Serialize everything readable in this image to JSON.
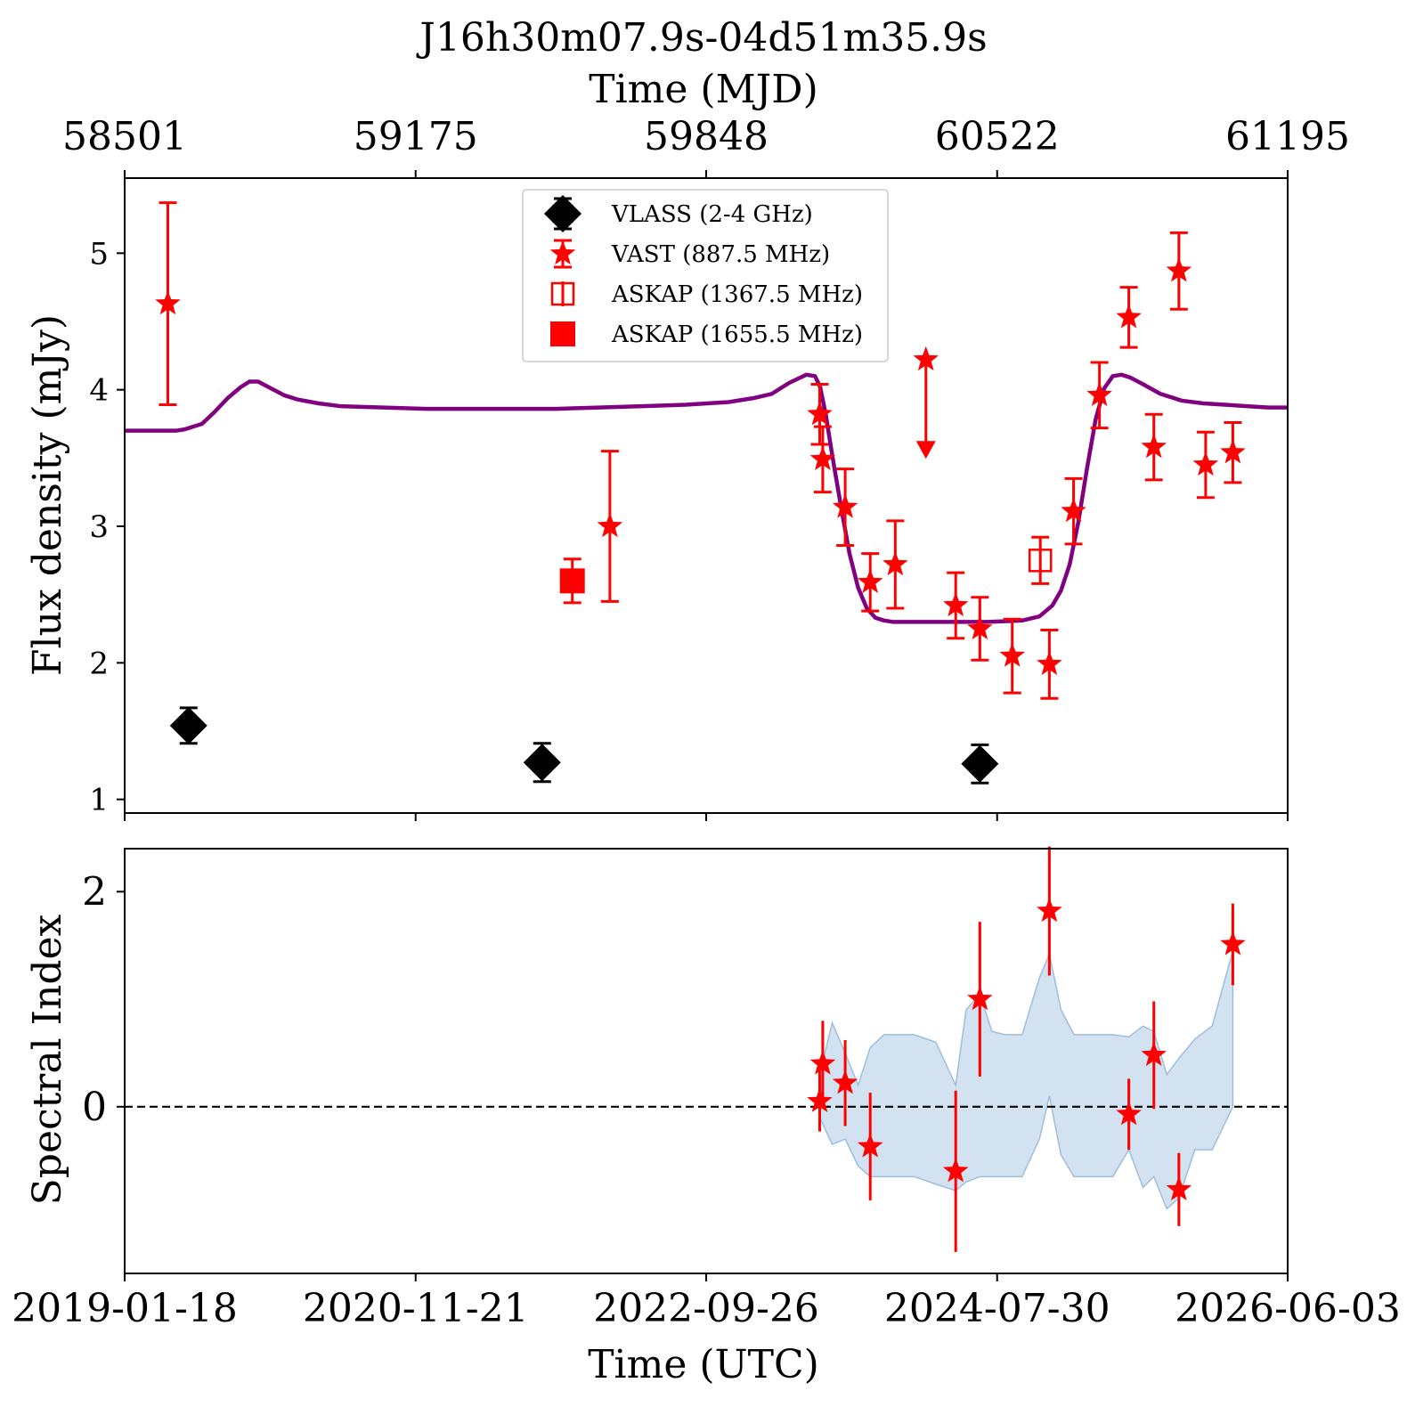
{
  "chart_data": [
    {
      "type": "scatter",
      "panel": "flux",
      "title": "J16h30m07.9s-04d51m35.9s",
      "top_axis": {
        "label": "Time (MJD)",
        "ticks": [
          "58501",
          "59175",
          "59848",
          "60522",
          "61195"
        ],
        "tick_values": [
          58501,
          59175,
          59848,
          60522,
          61195
        ]
      },
      "ylabel": "Flux density (mJy)",
      "yticks": [
        1,
        2,
        3,
        4,
        5
      ],
      "xlim_mjd": [
        58501,
        61195
      ],
      "ylim": [
        0.9,
        5.55
      ],
      "grid": false,
      "legend_position": "top-center",
      "legend": [
        {
          "label": "VLASS (2-4 GHz)",
          "marker": "diamond",
          "color": "#000000"
        },
        {
          "label": "VAST (887.5 MHz)",
          "marker": "star",
          "color": "#ff0000"
        },
        {
          "label": "ASKAP (1367.5 MHz)",
          "marker": "open-square",
          "color": "#ff0000"
        },
        {
          "label": "ASKAP (1655.5 MHz)",
          "marker": "filled-square",
          "color": "#ff0000"
        }
      ],
      "series": [
        {
          "name": "VLASS (2-4 GHz)",
          "color": "#000000",
          "marker": "diamond",
          "points": [
            {
              "mjd": 58649,
              "y": 1.54,
              "yerr": 0.13
            },
            {
              "mjd": 59468,
              "y": 1.27,
              "yerr": 0.14
            },
            {
              "mjd": 60482,
              "y": 1.26,
              "yerr": 0.14
            }
          ]
        },
        {
          "name": "VAST (887.5 MHz)",
          "color": "#ff0000",
          "marker": "star",
          "points": [
            {
              "mjd": 58601,
              "y": 4.63,
              "yerr": 0.74
            },
            {
              "mjd": 59625,
              "y": 3.0,
              "yerr": 0.55
            },
            {
              "mjd": 60111,
              "y": 3.82,
              "yerr": 0.22
            },
            {
              "mjd": 60118,
              "y": 3.49,
              "yerr": 0.24
            },
            {
              "mjd": 60170,
              "y": 3.14,
              "yerr": 0.28
            },
            {
              "mjd": 60228,
              "y": 2.59,
              "yerr": 0.21
            },
            {
              "mjd": 60286,
              "y": 2.72,
              "yerr": 0.32
            },
            {
              "mjd": 60426,
              "y": 2.42,
              "yerr": 0.24
            },
            {
              "mjd": 60482,
              "y": 2.25,
              "yerr": 0.23
            },
            {
              "mjd": 60557,
              "y": 2.05,
              "yerr": 0.27
            },
            {
              "mjd": 60643,
              "y": 1.99,
              "yerr": 0.25
            },
            {
              "mjd": 60699,
              "y": 3.11,
              "yerr": 0.24
            },
            {
              "mjd": 60759,
              "y": 3.96,
              "yerr": 0.24
            },
            {
              "mjd": 60827,
              "y": 4.53,
              "yerr": 0.22
            },
            {
              "mjd": 60885,
              "y": 3.58,
              "yerr": 0.24
            },
            {
              "mjd": 60943,
              "y": 4.87,
              "yerr": 0.28
            },
            {
              "mjd": 61005,
              "y": 3.45,
              "yerr": 0.24
            },
            {
              "mjd": 61068,
              "y": 3.54,
              "yerr": 0.22
            }
          ],
          "upper_limits": [
            {
              "mjd": 60357,
              "y": 4.22
            }
          ]
        },
        {
          "name": "ASKAP (1367.5 MHz)",
          "color": "#ff0000",
          "marker": "open-square",
          "points": [
            {
              "mjd": 60622,
              "y": 2.75,
              "yerr": 0.17
            }
          ]
        },
        {
          "name": "ASKAP (1655.5 MHz)",
          "color": "#ff0000",
          "marker": "filled-square",
          "points": [
            {
              "mjd": 59538,
              "y": 2.6,
              "yerr": 0.16
            }
          ]
        },
        {
          "name": "",
          "kind": "model-curve",
          "color": "#800080",
          "x_mjd": [
            58501,
            58540,
            58580,
            58600,
            58620,
            58640,
            58680,
            58710,
            58740,
            58770,
            58790,
            58810,
            58840,
            58870,
            58900,
            58950,
            59000,
            59100,
            59200,
            59300,
            59400,
            59500,
            59600,
            59700,
            59800,
            59900,
            59960,
            60000,
            60040,
            60060,
            60080,
            60100,
            60112,
            60125,
            60140,
            60160,
            60180,
            60200,
            60220,
            60240,
            60260,
            60280,
            60300,
            60330,
            60400,
            60500,
            60580,
            60620,
            60650,
            60670,
            60690,
            60710,
            60730,
            60750,
            60770,
            60790,
            60810,
            60830,
            60860,
            60900,
            60950,
            61000,
            61050,
            61100,
            61150,
            61195
          ],
          "y": [
            3.7,
            3.7,
            3.7,
            3.7,
            3.7,
            3.71,
            3.75,
            3.84,
            3.94,
            4.02,
            4.06,
            4.06,
            4.01,
            3.96,
            3.93,
            3.9,
            3.88,
            3.87,
            3.86,
            3.86,
            3.86,
            3.86,
            3.87,
            3.88,
            3.89,
            3.91,
            3.94,
            3.97,
            4.05,
            4.08,
            4.11,
            4.1,
            4.02,
            3.82,
            3.52,
            3.15,
            2.8,
            2.55,
            2.4,
            2.33,
            2.31,
            2.3,
            2.3,
            2.3,
            2.3,
            2.3,
            2.31,
            2.34,
            2.42,
            2.53,
            2.72,
            3.03,
            3.42,
            3.78,
            4.01,
            4.1,
            4.11,
            4.09,
            4.04,
            3.97,
            3.92,
            3.9,
            3.89,
            3.88,
            3.87,
            3.87
          ]
        }
      ]
    },
    {
      "type": "scatter",
      "panel": "spectral-index",
      "ylabel": "Spectral Index",
      "xlabel": "Time (UTC)",
      "xticks": [
        "2019-01-18",
        "2020-11-21",
        "2022-09-26",
        "2024-07-30",
        "2026-06-03"
      ],
      "xtick_mjd": [
        58501,
        59175,
        59848,
        60522,
        61195
      ],
      "yticks": [
        0,
        2
      ],
      "ylim": [
        -1.55,
        2.4
      ],
      "reference_line": {
        "y": 0,
        "style": "dashed",
        "color": "#000000"
      },
      "series": [
        {
          "name": "",
          "color": "#ff0000",
          "marker": "star",
          "points": [
            {
              "mjd": 60111,
              "y": 0.05,
              "yerr": 0.28
            },
            {
              "mjd": 60118,
              "y": 0.4,
              "yerr": 0.4
            },
            {
              "mjd": 60170,
              "y": 0.22,
              "yerr": 0.4
            },
            {
              "mjd": 60228,
              "y": -0.37,
              "yerr": 0.5
            },
            {
              "mjd": 60426,
              "y": -0.6,
              "yerr": 0.75
            },
            {
              "mjd": 60482,
              "y": 1.0,
              "yerr": 0.72
            },
            {
              "mjd": 60643,
              "y": 1.82,
              "yerr": 0.6
            },
            {
              "mjd": 60827,
              "y": -0.07,
              "yerr": 0.33
            },
            {
              "mjd": 60885,
              "y": 0.48,
              "yerr": 0.5
            },
            {
              "mjd": 60943,
              "y": -0.77,
              "yerr": 0.34
            },
            {
              "mjd": 61068,
              "y": 1.51,
              "yerr": 0.38
            }
          ]
        },
        {
          "name": "",
          "kind": "uncertainty-band",
          "color": "#b4cfe6",
          "x_mjd": [
            60111,
            60140,
            60170,
            60200,
            60228,
            60260,
            60290,
            60330,
            60380,
            60426,
            60450,
            60482,
            60510,
            60540,
            60580,
            60620,
            60643,
            60670,
            60700,
            60740,
            60790,
            60827,
            60860,
            60885,
            60915,
            60943,
            60980,
            61020,
            61068
          ],
          "lower": [
            -0.1,
            -0.35,
            -0.3,
            -0.55,
            -0.65,
            -0.65,
            -0.65,
            -0.65,
            -0.72,
            -0.78,
            -0.7,
            -0.65,
            -0.65,
            -0.65,
            -0.65,
            -0.3,
            0.1,
            -0.45,
            -0.65,
            -0.65,
            -0.65,
            -0.4,
            -0.75,
            -0.65,
            -0.95,
            -0.85,
            -0.4,
            -0.4,
            0.0
          ],
          "upper": [
            0.3,
            0.78,
            0.5,
            0.2,
            0.55,
            0.67,
            0.67,
            0.67,
            0.6,
            0.2,
            0.9,
            1.05,
            0.7,
            0.67,
            0.67,
            1.2,
            1.42,
            0.9,
            0.67,
            0.67,
            0.67,
            0.65,
            0.75,
            0.7,
            0.3,
            0.45,
            0.63,
            0.75,
            1.45
          ]
        }
      ]
    }
  ]
}
